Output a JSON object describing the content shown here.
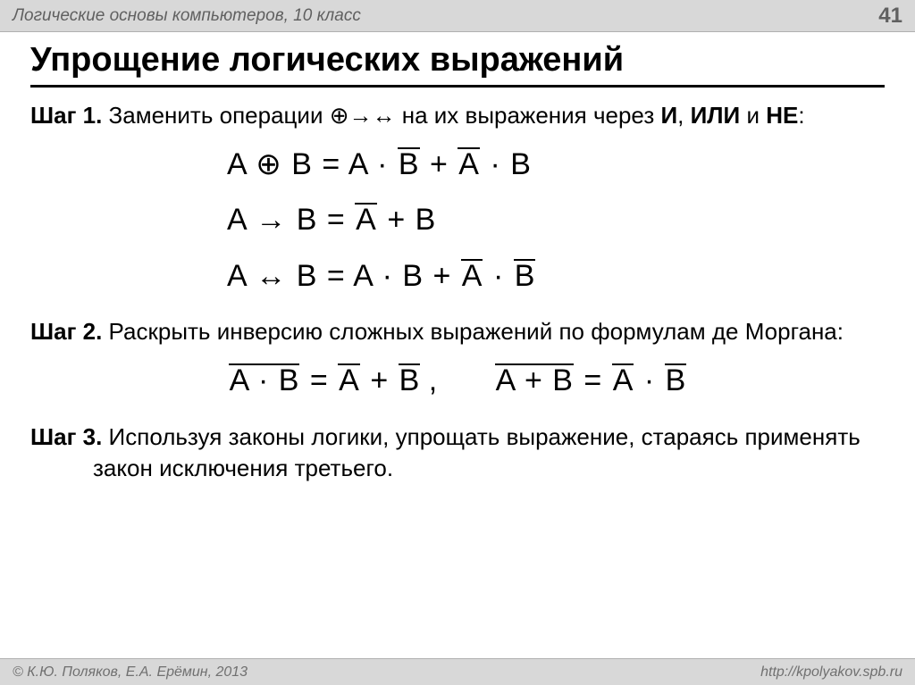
{
  "header": {
    "course": "Логические основы компьютеров, 10 класс",
    "page_number": "41"
  },
  "title": "Упрощение логических выражений",
  "step1": {
    "label": "Шаг 1.",
    "text_pre": " Заменить операции ",
    "ops": "⊕→↔",
    "text_mid": " на их выражения через ",
    "and": "И",
    "sep1": ", ",
    "or": "ИЛИ",
    "sep2": " и ",
    "not": "НЕ",
    "colon": ":"
  },
  "step2": {
    "label": "Шаг 2.",
    "text": " Раскрыть инверсию сложных выражений по формулам де Моргана:"
  },
  "step3": {
    "label": "Шаг 3.",
    "text": " Используя законы логики, упрощать выражение, стараясь применять закон исключения третьего."
  },
  "symbols": {
    "A": "A",
    "B": "B",
    "xor": "⊕",
    "eq": "=",
    "dot": "·",
    "plus": "+",
    "impl": "→",
    "equiv": "↔",
    "comma": ","
  },
  "footer": {
    "copyright": "© К.Ю. Поляков, Е.А. Ерёмин, 2013",
    "url": "http://kpolyakov.spb.ru"
  },
  "style": {
    "bg": "#ffffff",
    "bar_bg": "#d8d8d8",
    "bar_text": "#606060",
    "text": "#000000",
    "title_fontsize": 38,
    "body_fontsize": 26,
    "formula_fontsize": 34
  }
}
